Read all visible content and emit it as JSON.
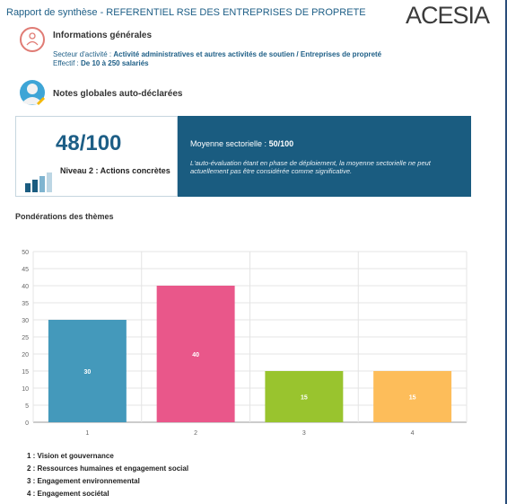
{
  "header": {
    "title": "Rapport de synthèse - REFERENTIEL RSE DES ENTREPRISES DE PROPRETE",
    "logo_text": "ACESIA"
  },
  "info": {
    "heading": "Informations générales",
    "secteur_label": "Secteur d'activité :",
    "secteur_value": "Activité administratives et autres activités de soutien / Entreprises de propreté",
    "effectif_label": "Effectif :",
    "effectif_value": "De 10 à 250 salariés"
  },
  "notes": {
    "heading": "Notes globales auto-déclarées",
    "score": "48/100",
    "level": "Niveau 2 : Actions concrètes",
    "moyenne_label": "Moyenne sectorielle :",
    "moyenne_value": "50/100",
    "disclaimer": "L'auto-évaluation étant en phase de déploiement, la moyenne sectorielle ne peut actuellement pas être considérée comme significative."
  },
  "ponderations": {
    "heading": "Pondérations des thèmes"
  },
  "colors": {
    "accent": "#1a5c80",
    "bar1": "#4499bb",
    "bar2": "#e9578a",
    "bar3": "#99c42e",
    "bar4": "#fdbd5a"
  },
  "chart_data": {
    "type": "bar",
    "categories": [
      "1",
      "2",
      "3",
      "4"
    ],
    "values": [
      30,
      40,
      15,
      15
    ],
    "data_labels": [
      "30",
      "40",
      "15",
      "15"
    ],
    "ylim": [
      0,
      50
    ],
    "yticks": [
      "0",
      "5",
      "10",
      "15",
      "20",
      "25",
      "30",
      "35",
      "40",
      "45",
      "50"
    ],
    "grid": true,
    "title": "",
    "xlabel": "",
    "ylabel": ""
  },
  "legend": [
    "1 : Vision et gouvernance",
    "2 : Ressources humaines et engagement social",
    "3 : Engagement environnemental",
    "4 : Engagement sociétal"
  ]
}
